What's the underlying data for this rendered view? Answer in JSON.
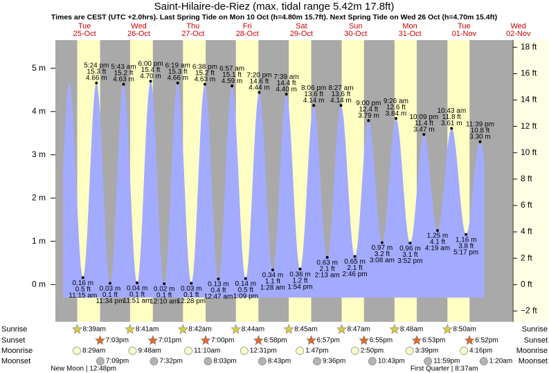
{
  "chart_data": {
    "type": "line",
    "title": "Saint-Hilaire-de-Riez (max. tidal range 5.42m 17.8ft)",
    "subtitle": "Times are CEST (UTC +2.0hrs). Last Spring Tide on Mon 10 Oct (h=4.80m 15.7ft). Next Spring Tide on Wed 26 Oct (h=4.70m 15.4ft)",
    "ylim": [
      -0.86,
      5.65
    ],
    "yticks": [
      {
        "value": 0,
        "label": "0 m"
      },
      {
        "value": 1,
        "label": "1 m"
      },
      {
        "value": 2,
        "label": "2 m"
      },
      {
        "value": 3,
        "label": "3 m"
      },
      {
        "value": 4,
        "label": "4 m"
      },
      {
        "value": 5,
        "label": "5 m"
      }
    ],
    "y2lim": [
      -2.82,
      18.54
    ],
    "y2ticks": [
      {
        "value": -2,
        "label": "−2 ft"
      },
      {
        "value": 0,
        "label": "0 ft"
      },
      {
        "value": 2,
        "label": "2 ft"
      },
      {
        "value": 4,
        "label": "4 ft"
      },
      {
        "value": 6,
        "label": "6 ft"
      },
      {
        "value": 8,
        "label": "8 ft"
      },
      {
        "value": 10,
        "label": "10 ft"
      },
      {
        "value": 12,
        "label": "12 ft"
      },
      {
        "value": 14,
        "label": "14 ft"
      },
      {
        "value": 16,
        "label": "16 ft"
      },
      {
        "value": 18,
        "label": "18 ft"
      }
    ],
    "colors": {
      "water": "#a3abff",
      "day": "#ffffc4",
      "night": "#a9a9a9",
      "margin": "#ffffe6",
      "sunrise": "#d8cc44",
      "sunset": "#e0692c",
      "moonrise": "#ffffcc",
      "moonset": "#b4b4b4",
      "day_label": "#cc0000"
    },
    "rows": [
      "Sunrise",
      "Sunset",
      "Moonrise",
      "Moonset"
    ],
    "days": [
      {
        "weekday": "Tue",
        "date": "25-Oct",
        "sunrise": "8:39am",
        "sunset": "7:03pm",
        "moonrise": "8:29am",
        "moonset": "7:09pm",
        "moon_phase": "New Moon | 12:48pm",
        "moon_phase_time": "12:48pm",
        "tides": [
          {
            "time": "11:15 am",
            "height": 0.16,
            "height_label": "0.16 m",
            "feet_label": "0.5 ft"
          },
          {
            "time": "5:24 pm",
            "height": 4.66,
            "height_label": "4.66 m",
            "feet_label": "15.3 ft"
          },
          {
            "time": "11:34 pm",
            "height": 0.03,
            "height_label": "0.03 m",
            "feet_label": "0.1 ft"
          }
        ]
      },
      {
        "weekday": "Wed",
        "date": "26-Oct",
        "sunrise": "8:41am",
        "sunset": "7:01pm",
        "moonrise": "9:48am",
        "moonset": "7:32pm",
        "moon_phase": null,
        "moon_phase_time": null,
        "tides": [
          {
            "time": "5:43 am",
            "height": 4.63,
            "height_label": "4.63 m",
            "feet_label": "15.2 ft"
          },
          {
            "time": "11:51 am",
            "height": 0.04,
            "height_label": "0.04 m",
            "feet_label": "0.1 ft"
          },
          {
            "time": "6:00 pm",
            "height": 4.7,
            "height_label": "4.70 m",
            "feet_label": "15.4 ft"
          }
        ]
      },
      {
        "weekday": "Thu",
        "date": "27-Oct",
        "sunrise": "8:42am",
        "sunset": "7:00pm",
        "moonrise": "11:10am",
        "moonset": "8:03pm",
        "moon_phase": null,
        "moon_phase_time": null,
        "tides": [
          {
            "time": "12:10 am",
            "height": 0.02,
            "height_label": "0.02 m",
            "feet_label": "0.1 ft"
          },
          {
            "time": "6:19 am",
            "height": 4.66,
            "height_label": "4.66 m",
            "feet_label": "15.3 ft"
          },
          {
            "time": "12:28 pm",
            "height": 0.03,
            "height_label": "0.03 m",
            "feet_label": "0.1 ft"
          },
          {
            "time": "6:38 pm",
            "height": 4.63,
            "height_label": "4.63 m",
            "feet_label": "15.2 ft"
          }
        ]
      },
      {
        "weekday": "Fri",
        "date": "28-Oct",
        "sunrise": "8:44am",
        "sunset": "6:58pm",
        "moonrise": "12:31pm",
        "moonset": "8:43pm",
        "moon_phase": null,
        "moon_phase_time": null,
        "tides": [
          {
            "time": "12:47 am",
            "height": 0.13,
            "height_label": "0.13 m",
            "feet_label": "0.4 ft"
          },
          {
            "time": "6:57 am",
            "height": 4.59,
            "height_label": "4.59 m",
            "feet_label": "15.1 ft"
          },
          {
            "time": "1:09 pm",
            "height": 0.14,
            "height_label": "0.14 m",
            "feet_label": "0.5 ft"
          },
          {
            "time": "7:20 pm",
            "height": 4.44,
            "height_label": "4.44 m",
            "feet_label": "14.6 ft"
          }
        ]
      },
      {
        "weekday": "Sat",
        "date": "29-Oct",
        "sunrise": "8:45am",
        "sunset": "6:57pm",
        "moonrise": "1:47pm",
        "moonset": "9:36pm",
        "moon_phase": null,
        "moon_phase_time": null,
        "tides": [
          {
            "time": "1:28 am",
            "height": 0.34,
            "height_label": "0.34 m",
            "feet_label": "1.1 ft"
          },
          {
            "time": "7:39 am",
            "height": 4.4,
            "height_label": "4.40 m",
            "feet_label": "14.4 ft"
          },
          {
            "time": "1:54 pm",
            "height": 0.36,
            "height_label": "0.36 m",
            "feet_label": "1.2 ft"
          },
          {
            "time": "8:06 pm",
            "height": 4.14,
            "height_label": "4.14 m",
            "feet_label": "13.6 ft"
          }
        ]
      },
      {
        "weekday": "Sun",
        "date": "30-Oct",
        "sunrise": "8:47am",
        "sunset": "6:55pm",
        "moonrise": "2:50pm",
        "moonset": "10:43pm",
        "moon_phase": null,
        "moon_phase_time": null,
        "tides": [
          {
            "time": "2:13 am",
            "height": 0.63,
            "height_label": "0.63 m",
            "feet_label": "2.1 ft"
          },
          {
            "time": "8:27 am",
            "height": 4.14,
            "height_label": "4.14 m",
            "feet_label": "13.6 ft"
          },
          {
            "time": "2:46 pm",
            "height": 0.65,
            "height_label": "0.65 m",
            "feet_label": "2.1 ft"
          },
          {
            "time": "9:00 pm",
            "height": 3.79,
            "height_label": "3.79 m",
            "feet_label": "12.4 ft"
          }
        ]
      },
      {
        "weekday": "Mon",
        "date": "31-Oct",
        "sunrise": "8:48am",
        "sunset": "6:53pm",
        "moonrise": "3:39pm",
        "moonset": "11:59pm",
        "moon_phase": null,
        "moon_phase_time": null,
        "tides": [
          {
            "time": "3:08 am",
            "height": 0.97,
            "height_label": "0.97 m",
            "feet_label": "3.2 ft"
          },
          {
            "time": "9:26 am",
            "height": 3.84,
            "height_label": "3.84 m",
            "feet_label": "12.6 ft"
          },
          {
            "time": "3:52 pm",
            "height": 0.96,
            "height_label": "0.96 m",
            "feet_label": "3.1 ft"
          },
          {
            "time": "10:09 pm",
            "height": 3.47,
            "height_label": "3.47 m",
            "feet_label": "11.4 ft"
          }
        ]
      },
      {
        "weekday": "Tue",
        "date": "01-Nov",
        "sunrise": "8:50am",
        "sunset": "6:52pm",
        "moonrise": "4:16pm",
        "moonset": null,
        "moon_phase": "First Quarter | 8:37am",
        "moon_phase_time": "8:37am",
        "tides": [
          {
            "time": "4:19 am",
            "height": 1.25,
            "height_label": "1.25 m",
            "feet_label": "4.1 ft"
          },
          {
            "time": "10:43 am",
            "height": 3.61,
            "height_label": "3.61 m",
            "feet_label": "11.8 ft"
          },
          {
            "time": "5:17 pm",
            "height": 1.16,
            "height_label": "1.16 m",
            "feet_label": "3.8 ft"
          },
          {
            "time": "11:39 pm",
            "height": 3.3,
            "height_label": "3.30 m",
            "feet_label": "10.8 ft"
          }
        ]
      },
      {
        "weekday": "Wed",
        "date": "02-Nov",
        "sunrise": null,
        "sunset": null,
        "moonrise": null,
        "moonset": "1:20am",
        "moon_phase": null,
        "moon_phase_time": null,
        "tides": []
      }
    ]
  }
}
